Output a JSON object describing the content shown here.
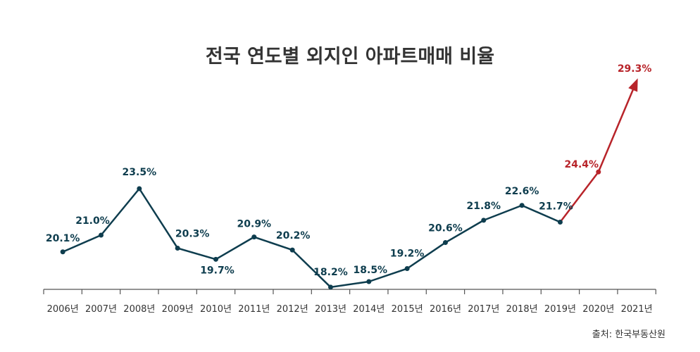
{
  "chart_data": {
    "type": "line",
    "title": "전국 연도별 외지인 아파트매매 비율",
    "categories": [
      "2006년",
      "2007년",
      "2008년",
      "2009년",
      "2010년",
      "2011년",
      "2012년",
      "2013년",
      "2014년",
      "2015년",
      "2016년",
      "2017년",
      "2018년",
      "2019년",
      "2020년",
      "2021년"
    ],
    "values": [
      20.1,
      21.0,
      23.5,
      20.3,
      19.7,
      20.9,
      20.2,
      18.2,
      18.5,
      19.2,
      20.6,
      21.8,
      22.6,
      21.7,
      24.4,
      29.3
    ],
    "data_labels": [
      "20.1%",
      "21.0%",
      "23.5%",
      "20.3%",
      "19.7%",
      "20.9%",
      "20.2%",
      "18.2%",
      "18.5%",
      "19.2%",
      "20.6%",
      "21.8%",
      "22.6%",
      "21.7%",
      "24.4%",
      "29.3%"
    ],
    "highlight_from_index": 13,
    "colors": {
      "main": "#0e3d4e",
      "highlight": "#b8242a",
      "axis": "#555555"
    },
    "xlabel": "",
    "ylabel": "",
    "grid": false,
    "source": "출처: 한국부동산원"
  }
}
